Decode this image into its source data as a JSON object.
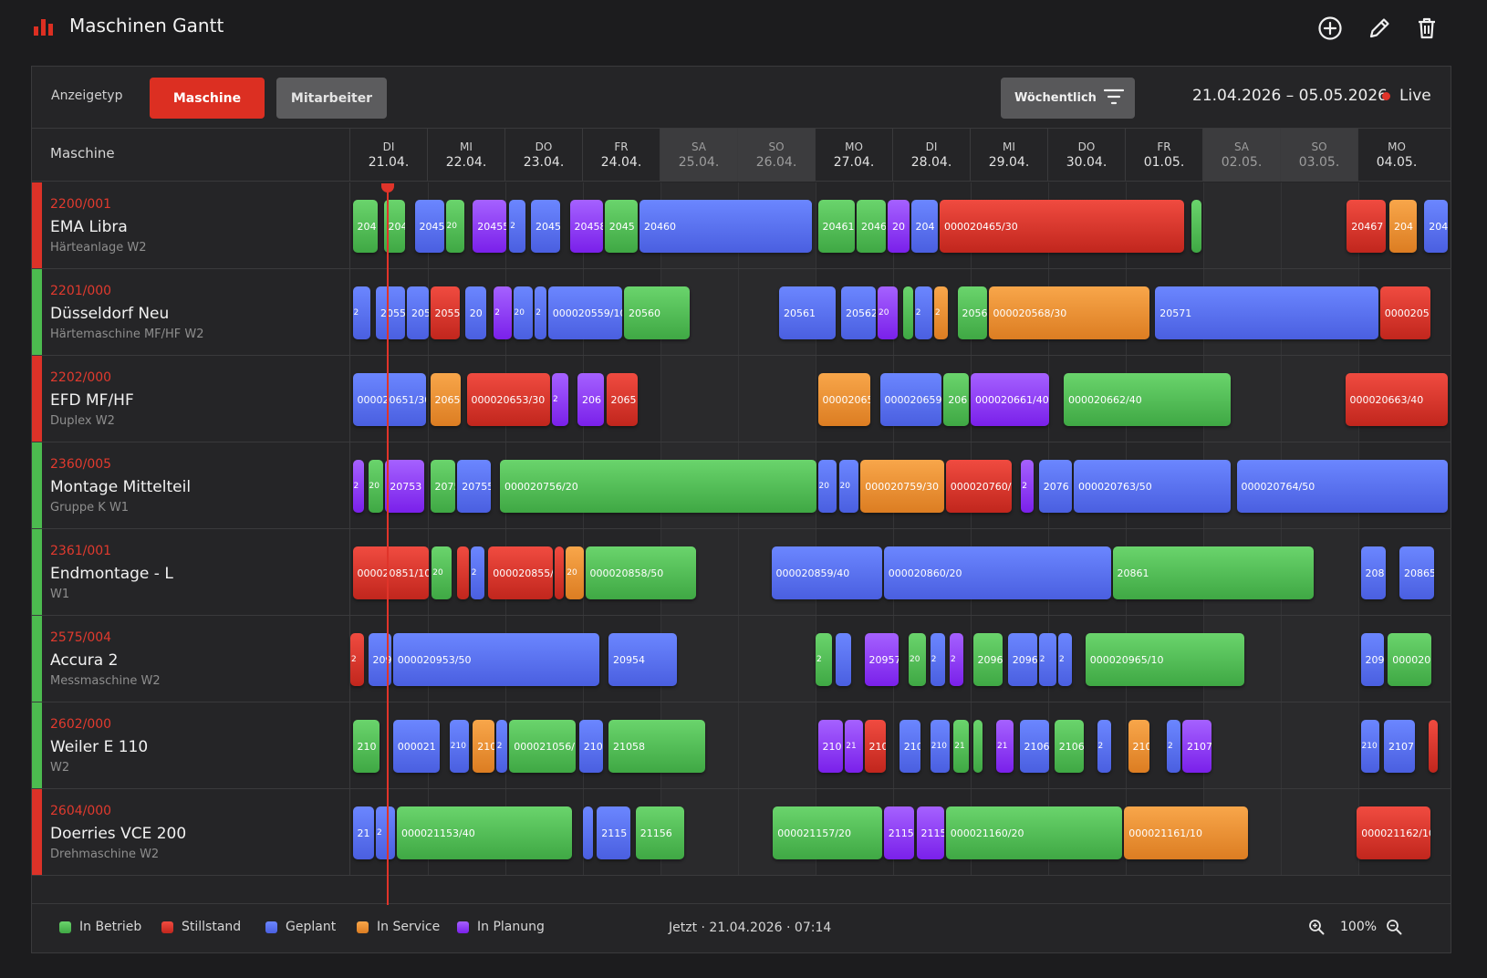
{
  "app": {
    "title": "Maschinen Gantt",
    "accent_color": "#dc2f22",
    "icons": [
      "bar-chart-icon",
      "add-circle-icon",
      "edit-pencil-icon",
      "delete-trash-icon"
    ]
  },
  "toolbar": {
    "display_type_label": "Anzeigetyp",
    "btn_machine": "Maschine",
    "btn_employee": "Mitarbeiter",
    "period_select": "Wöchentlich",
    "date_range": "21.04.2026 – 05.05.2026",
    "live_label": "Live"
  },
  "header": {
    "machine_col": "Maschine",
    "days": [
      {
        "dn": "DI",
        "dd": "21.04.",
        "weekend": false
      },
      {
        "dn": "MI",
        "dd": "22.04.",
        "weekend": false
      },
      {
        "dn": "DO",
        "dd": "23.04.",
        "weekend": false
      },
      {
        "dn": "FR",
        "dd": "24.04.",
        "weekend": false
      },
      {
        "dn": "SA",
        "dd": "25.04.",
        "weekend": true
      },
      {
        "dn": "SO",
        "dd": "26.04.",
        "weekend": true
      },
      {
        "dn": "MO",
        "dd": "27.04.",
        "weekend": false
      },
      {
        "dn": "DI",
        "dd": "28.04.",
        "weekend": false
      },
      {
        "dn": "MI",
        "dd": "29.04.",
        "weekend": false
      },
      {
        "dn": "DO",
        "dd": "30.04.",
        "weekend": false
      },
      {
        "dn": "FR",
        "dd": "01.05.",
        "weekend": false
      },
      {
        "dn": "SA",
        "dd": "02.05.",
        "weekend": true
      },
      {
        "dn": "SO",
        "dd": "03.05.",
        "weekend": true
      },
      {
        "dn": "MO",
        "dd": "04.05.",
        "weekend": false
      }
    ]
  },
  "status_colors": {
    "betrieb": "#4cbb4f",
    "stillstand": "#dc3228",
    "geplant": "#5a72f2",
    "service": "#ec9136",
    "planung": "#8b35f4"
  },
  "machines": [
    {
      "code": "2200/001",
      "name": "EMA Libra",
      "sub": "Härteanlage W2",
      "state": "stillstand",
      "orders": [
        {
          "s": 0.03,
          "e": 0.38,
          "st": "betrieb",
          "l": "204"
        },
        {
          "s": 0.43,
          "e": 0.73,
          "st": "betrieb",
          "l": "204"
        },
        {
          "s": 0.83,
          "e": 1.23,
          "st": "geplant",
          "l": "2045"
        },
        {
          "s": 1.23,
          "e": 1.5,
          "st": "betrieb",
          "l": "20"
        },
        {
          "s": 1.58,
          "e": 2.03,
          "st": "planung",
          "l": "20455"
        },
        {
          "s": 2.05,
          "e": 2.28,
          "st": "geplant",
          "l": "2"
        },
        {
          "s": 2.33,
          "e": 2.73,
          "st": "geplant",
          "l": "2045"
        },
        {
          "s": 2.83,
          "e": 3.28,
          "st": "planung",
          "l": "20458"
        },
        {
          "s": 3.28,
          "e": 3.73,
          "st": "betrieb",
          "l": "2045"
        },
        {
          "s": 3.73,
          "e": 5.98,
          "st": "geplant",
          "l": "20460"
        },
        {
          "s": 6.03,
          "e": 6.53,
          "st": "betrieb",
          "l": "20461"
        },
        {
          "s": 6.53,
          "e": 6.93,
          "st": "betrieb",
          "l": "2046"
        },
        {
          "s": 6.93,
          "e": 7.23,
          "st": "planung",
          "l": "20"
        },
        {
          "s": 7.23,
          "e": 7.6,
          "st": "geplant",
          "l": "204"
        },
        {
          "s": 7.6,
          "e": 10.78,
          "st": "stillstand",
          "l": "000020465/30"
        },
        {
          "s": 10.85,
          "e": 11.0,
          "st": "betrieb",
          "l": ""
        },
        {
          "s": 12.85,
          "e": 13.38,
          "st": "stillstand",
          "l": "20467"
        },
        {
          "s": 13.4,
          "e": 13.78,
          "st": "service",
          "l": "204"
        },
        {
          "s": 13.85,
          "e": 14.18,
          "st": "geplant",
          "l": "204"
        }
      ]
    },
    {
      "code": "2201/000",
      "name": "Düsseldorf Neu",
      "sub": "Härtemaschine MF/HF W2",
      "state": "betrieb",
      "orders": [
        {
          "s": 0.03,
          "e": 0.28,
          "st": "geplant",
          "l": "2"
        },
        {
          "s": 0.33,
          "e": 0.73,
          "st": "geplant",
          "l": "2055"
        },
        {
          "s": 0.73,
          "e": 1.03,
          "st": "geplant",
          "l": "205"
        },
        {
          "s": 1.03,
          "e": 1.43,
          "st": "stillstand",
          "l": "2055"
        },
        {
          "s": 1.48,
          "e": 1.78,
          "st": "geplant",
          "l": "20"
        },
        {
          "s": 1.85,
          "e": 2.1,
          "st": "planung",
          "l": "2"
        },
        {
          "s": 2.1,
          "e": 2.38,
          "st": "geplant",
          "l": "20"
        },
        {
          "s": 2.38,
          "e": 2.55,
          "st": "geplant",
          "l": "2"
        },
        {
          "s": 2.55,
          "e": 3.53,
          "st": "geplant",
          "l": "000020559/10"
        },
        {
          "s": 3.53,
          "e": 4.4,
          "st": "betrieb",
          "l": "20560"
        },
        {
          "s": 5.53,
          "e": 6.28,
          "st": "geplant",
          "l": "20561"
        },
        {
          "s": 6.33,
          "e": 6.8,
          "st": "geplant",
          "l": "20562"
        },
        {
          "s": 6.8,
          "e": 7.08,
          "st": "planung",
          "l": "20"
        },
        {
          "s": 7.13,
          "e": 7.28,
          "st": "betrieb",
          "l": ""
        },
        {
          "s": 7.28,
          "e": 7.53,
          "st": "geplant",
          "l": "2"
        },
        {
          "s": 7.53,
          "e": 7.73,
          "st": "service",
          "l": "2"
        },
        {
          "s": 7.83,
          "e": 8.23,
          "st": "betrieb",
          "l": "2056"
        },
        {
          "s": 8.23,
          "e": 10.33,
          "st": "service",
          "l": "000020568/30"
        },
        {
          "s": 10.38,
          "e": 13.28,
          "st": "geplant",
          "l": "20571"
        },
        {
          "s": 13.28,
          "e": 13.95,
          "st": "stillstand",
          "l": "0000205"
        }
      ]
    },
    {
      "code": "2202/000",
      "name": "EFD MF/HF",
      "sub": "Duplex W2",
      "state": "stillstand",
      "orders": [
        {
          "s": 0.03,
          "e": 1.0,
          "st": "geplant",
          "l": "000020651/30"
        },
        {
          "s": 1.03,
          "e": 1.45,
          "st": "service",
          "l": "2065"
        },
        {
          "s": 1.5,
          "e": 2.6,
          "st": "stillstand",
          "l": "000020653/30"
        },
        {
          "s": 2.6,
          "e": 2.83,
          "st": "planung",
          "l": "2"
        },
        {
          "s": 2.93,
          "e": 3.3,
          "st": "planung",
          "l": "206"
        },
        {
          "s": 3.3,
          "e": 3.73,
          "st": "stillstand",
          "l": "2065"
        },
        {
          "s": 6.03,
          "e": 6.73,
          "st": "service",
          "l": "000020657"
        },
        {
          "s": 6.83,
          "e": 7.65,
          "st": "geplant",
          "l": "000020659"
        },
        {
          "s": 7.65,
          "e": 8.0,
          "st": "betrieb",
          "l": "206"
        },
        {
          "s": 8.0,
          "e": 9.03,
          "st": "planung",
          "l": "000020661/40"
        },
        {
          "s": 9.2,
          "e": 11.38,
          "st": "betrieb",
          "l": "000020662/40"
        },
        {
          "s": 12.83,
          "e": 14.18,
          "st": "stillstand",
          "l": "000020663/40"
        }
      ]
    },
    {
      "code": "2360/005",
      "name": "Montage Mittelteil",
      "sub": "Gruppe K W1",
      "state": "betrieb",
      "orders": [
        {
          "s": 0.03,
          "e": 0.2,
          "st": "planung",
          "l": "2"
        },
        {
          "s": 0.23,
          "e": 0.45,
          "st": "betrieb",
          "l": "20"
        },
        {
          "s": 0.45,
          "e": 0.98,
          "st": "planung",
          "l": "20753"
        },
        {
          "s": 1.03,
          "e": 1.38,
          "st": "betrieb",
          "l": "2075"
        },
        {
          "s": 1.38,
          "e": 1.83,
          "st": "geplant",
          "l": "20755"
        },
        {
          "s": 1.93,
          "e": 6.03,
          "st": "betrieb",
          "l": "000020756/20"
        },
        {
          "s": 6.03,
          "e": 6.3,
          "st": "geplant",
          "l": "20"
        },
        {
          "s": 6.3,
          "e": 6.58,
          "st": "geplant",
          "l": "20"
        },
        {
          "s": 6.58,
          "e": 7.68,
          "st": "service",
          "l": "000020759/30"
        },
        {
          "s": 7.68,
          "e": 8.55,
          "st": "stillstand",
          "l": "000020760/"
        },
        {
          "s": 8.65,
          "e": 8.83,
          "st": "planung",
          "l": "2"
        },
        {
          "s": 8.88,
          "e": 9.33,
          "st": "geplant",
          "l": "2076"
        },
        {
          "s": 9.33,
          "e": 11.38,
          "st": "geplant",
          "l": "000020763/50"
        },
        {
          "s": 11.43,
          "e": 14.18,
          "st": "geplant",
          "l": "000020764/50"
        }
      ]
    },
    {
      "code": "2361/001",
      "name": "Endmontage - L",
      "sub": "W1",
      "state": "betrieb",
      "orders": [
        {
          "s": 0.03,
          "e": 1.03,
          "st": "stillstand",
          "l": "000020851/10"
        },
        {
          "s": 1.05,
          "e": 1.33,
          "st": "betrieb",
          "l": "20"
        },
        {
          "s": 1.38,
          "e": 1.55,
          "st": "stillstand",
          "l": ""
        },
        {
          "s": 1.55,
          "e": 1.75,
          "st": "geplant",
          "l": "2"
        },
        {
          "s": 1.78,
          "e": 2.63,
          "st": "stillstand",
          "l": "000020855/"
        },
        {
          "s": 2.63,
          "e": 2.78,
          "st": "stillstand",
          "l": ""
        },
        {
          "s": 2.78,
          "e": 3.03,
          "st": "service",
          "l": "20"
        },
        {
          "s": 3.03,
          "e": 4.48,
          "st": "betrieb",
          "l": "000020858/50"
        },
        {
          "s": 5.43,
          "e": 6.88,
          "st": "geplant",
          "l": "000020859/40"
        },
        {
          "s": 6.88,
          "e": 9.83,
          "st": "geplant",
          "l": "000020860/20"
        },
        {
          "s": 9.83,
          "e": 12.45,
          "st": "betrieb",
          "l": "20861"
        },
        {
          "s": 13.03,
          "e": 13.38,
          "st": "geplant",
          "l": "208"
        },
        {
          "s": 13.53,
          "e": 14.0,
          "st": "geplant",
          "l": "20865"
        }
      ]
    },
    {
      "code": "2575/004",
      "name": "Accura 2",
      "sub": "Messmaschine W2",
      "state": "betrieb",
      "orders": [
        {
          "s": 0.0,
          "e": 0.2,
          "st": "stillstand",
          "l": "2"
        },
        {
          "s": 0.23,
          "e": 0.55,
          "st": "geplant",
          "l": "209"
        },
        {
          "s": 0.55,
          "e": 3.23,
          "st": "geplant",
          "l": "000020953/50"
        },
        {
          "s": 3.33,
          "e": 4.23,
          "st": "geplant",
          "l": "20954"
        },
        {
          "s": 6.0,
          "e": 6.23,
          "st": "betrieb",
          "l": "2"
        },
        {
          "s": 6.26,
          "e": 6.48,
          "st": "geplant",
          "l": ""
        },
        {
          "s": 6.63,
          "e": 7.1,
          "st": "planung",
          "l": "20957"
        },
        {
          "s": 7.2,
          "e": 7.45,
          "st": "betrieb",
          "l": "20"
        },
        {
          "s": 7.48,
          "e": 7.7,
          "st": "geplant",
          "l": "2"
        },
        {
          "s": 7.73,
          "e": 7.93,
          "st": "planung",
          "l": "2"
        },
        {
          "s": 8.03,
          "e": 8.43,
          "st": "betrieb",
          "l": "2096"
        },
        {
          "s": 8.48,
          "e": 8.88,
          "st": "geplant",
          "l": "20962"
        },
        {
          "s": 8.88,
          "e": 9.13,
          "st": "geplant",
          "l": "2"
        },
        {
          "s": 9.13,
          "e": 9.33,
          "st": "geplant",
          "l": "2"
        },
        {
          "s": 9.48,
          "e": 11.55,
          "st": "betrieb",
          "l": "000020965/10"
        },
        {
          "s": 13.03,
          "e": 13.35,
          "st": "geplant",
          "l": "209"
        },
        {
          "s": 13.38,
          "e": 13.97,
          "st": "betrieb",
          "l": "000020"
        }
      ]
    },
    {
      "code": "2602/000",
      "name": "Weiler E 110",
      "sub": "W2",
      "state": "betrieb",
      "orders": [
        {
          "s": 0.03,
          "e": 0.4,
          "st": "betrieb",
          "l": "210"
        },
        {
          "s": 0.55,
          "e": 1.18,
          "st": "geplant",
          "l": "000021"
        },
        {
          "s": 1.28,
          "e": 1.55,
          "st": "geplant",
          "l": "210"
        },
        {
          "s": 1.58,
          "e": 1.88,
          "st": "service",
          "l": "210"
        },
        {
          "s": 1.88,
          "e": 2.05,
          "st": "geplant",
          "l": "2"
        },
        {
          "s": 2.05,
          "e": 2.93,
          "st": "betrieb",
          "l": "000021056/"
        },
        {
          "s": 2.95,
          "e": 3.28,
          "st": "geplant",
          "l": "210"
        },
        {
          "s": 3.33,
          "e": 4.6,
          "st": "betrieb",
          "l": "21058"
        },
        {
          "s": 6.03,
          "e": 6.38,
          "st": "planung",
          "l": "210"
        },
        {
          "s": 6.38,
          "e": 6.63,
          "st": "planung",
          "l": "21"
        },
        {
          "s": 6.63,
          "e": 6.93,
          "st": "stillstand",
          "l": "210"
        },
        {
          "s": 7.08,
          "e": 7.38,
          "st": "geplant",
          "l": "210"
        },
        {
          "s": 7.48,
          "e": 7.75,
          "st": "geplant",
          "l": "210"
        },
        {
          "s": 7.78,
          "e": 8.0,
          "st": "betrieb",
          "l": "21"
        },
        {
          "s": 8.03,
          "e": 8.18,
          "st": "betrieb",
          "l": ""
        },
        {
          "s": 8.33,
          "e": 8.58,
          "st": "planung",
          "l": "21"
        },
        {
          "s": 8.63,
          "e": 9.03,
          "st": "geplant",
          "l": "2106"
        },
        {
          "s": 9.08,
          "e": 9.48,
          "st": "betrieb",
          "l": "2106"
        },
        {
          "s": 9.63,
          "e": 9.83,
          "st": "geplant",
          "l": "2"
        },
        {
          "s": 10.03,
          "e": 10.33,
          "st": "service",
          "l": "210"
        },
        {
          "s": 10.53,
          "e": 10.73,
          "st": "geplant",
          "l": "2"
        },
        {
          "s": 10.73,
          "e": 11.13,
          "st": "planung",
          "l": "2107"
        },
        {
          "s": 13.03,
          "e": 13.3,
          "st": "geplant",
          "l": "210"
        },
        {
          "s": 13.33,
          "e": 13.75,
          "st": "geplant",
          "l": "2107"
        },
        {
          "s": 13.9,
          "e": 14.05,
          "st": "stillstand",
          "l": ""
        }
      ]
    },
    {
      "code": "2604/000",
      "name": "Doerries VCE 200",
      "sub": "Drehmaschine W2",
      "state": "stillstand",
      "orders": [
        {
          "s": 0.03,
          "e": 0.33,
          "st": "geplant",
          "l": "21"
        },
        {
          "s": 0.33,
          "e": 0.6,
          "st": "geplant",
          "l": "2"
        },
        {
          "s": 0.6,
          "e": 2.88,
          "st": "betrieb",
          "l": "000021153/40"
        },
        {
          "s": 3.0,
          "e": 3.15,
          "st": "geplant",
          "l": ""
        },
        {
          "s": 3.18,
          "e": 3.63,
          "st": "geplant",
          "l": "2115"
        },
        {
          "s": 3.68,
          "e": 4.33,
          "st": "betrieb",
          "l": "21156"
        },
        {
          "s": 5.45,
          "e": 6.88,
          "st": "betrieb",
          "l": "000021157/20"
        },
        {
          "s": 6.88,
          "e": 7.3,
          "st": "planung",
          "l": "2115"
        },
        {
          "s": 7.3,
          "e": 7.68,
          "st": "planung",
          "l": "2115"
        },
        {
          "s": 7.68,
          "e": 9.98,
          "st": "betrieb",
          "l": "000021160/20"
        },
        {
          "s": 9.98,
          "e": 11.6,
          "st": "service",
          "l": "000021161/10"
        },
        {
          "s": 12.98,
          "e": 13.95,
          "st": "stillstand",
          "l": "000021162/10"
        }
      ]
    }
  ],
  "legend": [
    {
      "label": "In Betrieb",
      "st": "betrieb"
    },
    {
      "label": "Stillstand",
      "st": "stillstand"
    },
    {
      "label": "Geplant",
      "st": "geplant"
    },
    {
      "label": "In Service",
      "st": "service"
    },
    {
      "label": "In Planung",
      "st": "planung"
    }
  ],
  "footer": {
    "now_text": "Jetzt · 21.04.2026 · 07:14",
    "zoom_level": "100%"
  }
}
